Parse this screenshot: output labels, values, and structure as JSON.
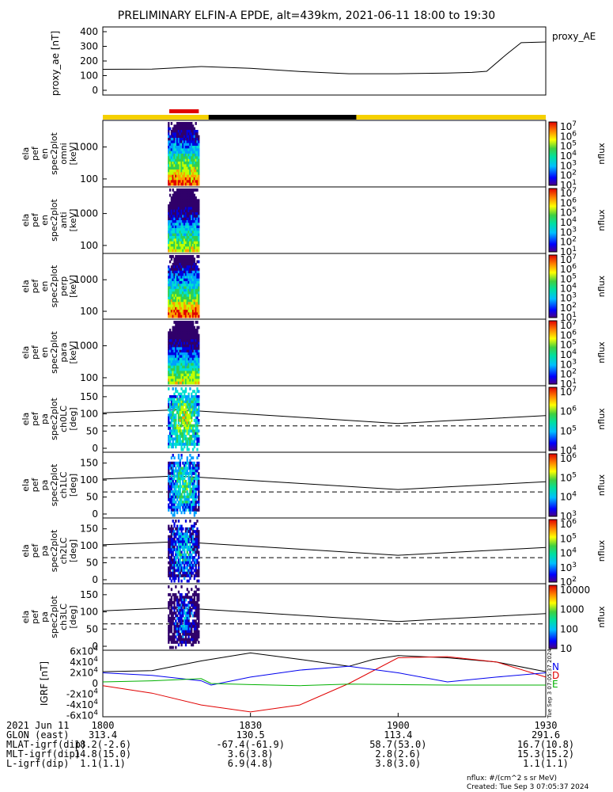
{
  "title": "PRELIMINARY ELFIN-A EPDE, alt=439km, 2021-06-11 18:00 to 19:30",
  "chart_data": [
    {
      "type": "line",
      "panel": "proxy_ae",
      "ylabel": "proxy_ae [nT]",
      "legend": "proxy_AE",
      "yticks": [
        "400",
        "300",
        "200",
        "100",
        "0"
      ],
      "ylim": [
        0,
        420
      ],
      "x_minutes": [
        0,
        10,
        20,
        30,
        40,
        50,
        60,
        70,
        75,
        78,
        82,
        85,
        90
      ],
      "values": [
        143,
        145,
        162,
        150,
        128,
        113,
        113,
        118,
        122,
        130,
        245,
        325,
        330
      ]
    },
    {
      "type": "heatmap",
      "panel": "ela_pef_en_spec2plot_omni",
      "ylabel": [
        "ela",
        "pef",
        "en",
        "spec2plot",
        "omni",
        "[keV]"
      ],
      "yticks": [
        "1000",
        "100"
      ],
      "colorbar": {
        "label": "nflux",
        "ticks": [
          "10^7",
          "10^6",
          "10^5",
          "10^4",
          "10^3",
          "10^2",
          "10^1"
        ]
      }
    },
    {
      "type": "heatmap",
      "panel": "ela_pef_en_spec2plot_anti",
      "ylabel": [
        "ela",
        "pef",
        "en",
        "spec2plot",
        "anti",
        "[keV]"
      ],
      "yticks": [
        "1000",
        "100"
      ],
      "colorbar": {
        "label": "nflux",
        "ticks": [
          "10^7",
          "10^6",
          "10^5",
          "10^4",
          "10^3",
          "10^2",
          "10^1"
        ]
      }
    },
    {
      "type": "heatmap",
      "panel": "ela_pef_en_spec2plot_perp",
      "ylabel": [
        "ela",
        "pef",
        "en",
        "spec2plot",
        "perp",
        "[keV]"
      ],
      "yticks": [
        "1000",
        "100"
      ],
      "colorbar": {
        "label": "nflux",
        "ticks": [
          "10^7",
          "10^6",
          "10^5",
          "10^4",
          "10^3",
          "10^2",
          "10^1"
        ]
      }
    },
    {
      "type": "heatmap",
      "panel": "ela_pef_en_spec2plot_para",
      "ylabel": [
        "ela",
        "pef",
        "en",
        "spec2plot",
        "para",
        "[keV]"
      ],
      "yticks": [
        "1000",
        "100"
      ],
      "colorbar": {
        "label": "nflux",
        "ticks": [
          "10^7",
          "10^6",
          "10^5",
          "10^4",
          "10^3",
          "10^2",
          "10^1"
        ]
      }
    },
    {
      "type": "heatmap",
      "panel": "ela_pef_pa_spec2plot_ch0LC",
      "ylabel": [
        "ela",
        "pef",
        "pa",
        "spec2plot",
        "ch0LC",
        "[deg]"
      ],
      "yticks": [
        "150",
        "100",
        "50",
        "0"
      ],
      "colorbar": {
        "label": "nflux",
        "ticks": [
          "10^7",
          "10^6",
          "10^5",
          "10^4"
        ]
      }
    },
    {
      "type": "heatmap",
      "panel": "ela_pef_pa_spec2plot_ch1LC",
      "ylabel": [
        "ela",
        "pef",
        "pa",
        "spec2plot",
        "ch1LC",
        "[deg]"
      ],
      "yticks": [
        "150",
        "100",
        "50",
        "0"
      ],
      "colorbar": {
        "label": "nflux",
        "ticks": [
          "10^6",
          "10^5",
          "10^4",
          "10^3"
        ]
      }
    },
    {
      "type": "heatmap",
      "panel": "ela_pef_pa_spec2plot_ch2LC",
      "ylabel": [
        "ela",
        "pef",
        "pa",
        "spec2plot",
        "ch2LC",
        "[deg]"
      ],
      "yticks": [
        "150",
        "100",
        "50",
        "0"
      ],
      "colorbar": {
        "label": "nflux",
        "ticks": [
          "10^6",
          "10^5",
          "10^4",
          "10^3",
          "10^2"
        ]
      }
    },
    {
      "type": "heatmap",
      "panel": "ela_pef_pa_spec2plot_ch3LC",
      "ylabel": [
        "ela",
        "pef",
        "pa",
        "spec2plot",
        "ch3LC",
        "[deg]"
      ],
      "yticks": [
        "150",
        "100",
        "50",
        "0"
      ],
      "colorbar": {
        "label": "nflux",
        "ticks": [
          "10000",
          "1000",
          "100",
          "10"
        ]
      }
    },
    {
      "type": "line",
      "panel": "igrf",
      "ylabel": "IGRF [nT]",
      "yticks": [
        "6x10^4",
        "4x10^4",
        "2x10^4",
        "0",
        "-2x10^4",
        "-4x10^4",
        "-6x10^4"
      ],
      "ylim": [
        -62000,
        62000
      ],
      "legend": [
        "N",
        "D",
        "E"
      ],
      "side_text": "Tue Sep  3 07:05:37 2024",
      "series": [
        {
          "name": "N",
          "color": "#000000",
          "x_minutes": [
            0,
            10,
            20,
            30,
            40,
            50,
            55,
            60,
            70,
            80,
            90
          ],
          "values": [
            22000,
            24000,
            42000,
            57000,
            45000,
            32000,
            45000,
            52000,
            48000,
            40000,
            22000
          ]
        },
        {
          "name": "D",
          "color": "#e00000",
          "x_minutes": [
            0,
            10,
            20,
            30,
            40,
            50,
            60,
            70,
            80,
            90
          ],
          "values": [
            -4000,
            -18000,
            -40000,
            -53000,
            -40000,
            0,
            48000,
            50000,
            40000,
            12000
          ]
        },
        {
          "name": "E",
          "color": "#0000ee",
          "x_minutes": [
            0,
            10,
            20,
            22,
            30,
            40,
            50,
            60,
            70,
            80,
            90
          ],
          "values": [
            20000,
            15000,
            5000,
            -3000,
            12000,
            25000,
            32000,
            20000,
            3000,
            12000,
            20000
          ]
        },
        {
          "name": "",
          "color": "#00b000",
          "x_minutes": [
            0,
            10,
            20,
            22,
            30,
            40,
            50,
            60,
            70,
            80,
            90
          ],
          "values": [
            3000,
            5000,
            9000,
            0,
            -2000,
            -4000,
            -1000,
            -2000,
            -3000,
            -3000,
            -3000
          ]
        }
      ]
    }
  ],
  "xaxis": {
    "rows": [
      [
        "2021 Jun 11",
        "1800",
        "",
        "1830",
        "",
        "1900",
        "",
        "1930"
      ],
      [
        "GLON (east)",
        "313.4",
        "130.5",
        "113.4",
        "291.6"
      ],
      [
        "MLAT-igrf(dip)",
        "18.2(-2.6)",
        "-67.4(-61.9)",
        "58.7(53.0)",
        "16.7(10.8)"
      ],
      [
        "MLT-igrf(dip)",
        "14.8(15.0)",
        "3.6(3.8)",
        "2.8(2.6)",
        "15.3(15.2)"
      ],
      [
        "L-igrf(dip)",
        "1.1(1.1)",
        "6.9(4.8)",
        "3.8(3.0)",
        "1.1(1.1)"
      ]
    ],
    "row_labels": [
      "2021 Jun 11",
      "GLON (east)",
      "MLAT-igrf(dip)",
      "MLT-igrf(dip)",
      "L-igrf(dip)"
    ],
    "ticks": [
      "1800",
      "1830",
      "1900",
      "1930"
    ],
    "glon": [
      "313.4",
      "130.5",
      "113.4",
      "291.6"
    ],
    "mlat": [
      "18.2(-2.6)",
      "-67.4(-61.9)",
      "58.7(53.0)",
      "16.7(10.8)"
    ],
    "mlt": [
      "14.8(15.0)",
      "3.6(3.8)",
      "2.8(2.6)",
      "15.3(15.2)"
    ],
    "lval": [
      "1.1(1.1)",
      "6.9(4.8)",
      "3.8(3.0)",
      "1.1(1.1)"
    ]
  },
  "notes": {
    "units": "nflux: #/(cm^2 s sr MeV)",
    "created": "Created: Tue Sep  3 07:05:37 2024"
  },
  "colors": {
    "sunlit": "#f5d000",
    "eclipse": "#000000",
    "science_zone": "#e00000"
  }
}
